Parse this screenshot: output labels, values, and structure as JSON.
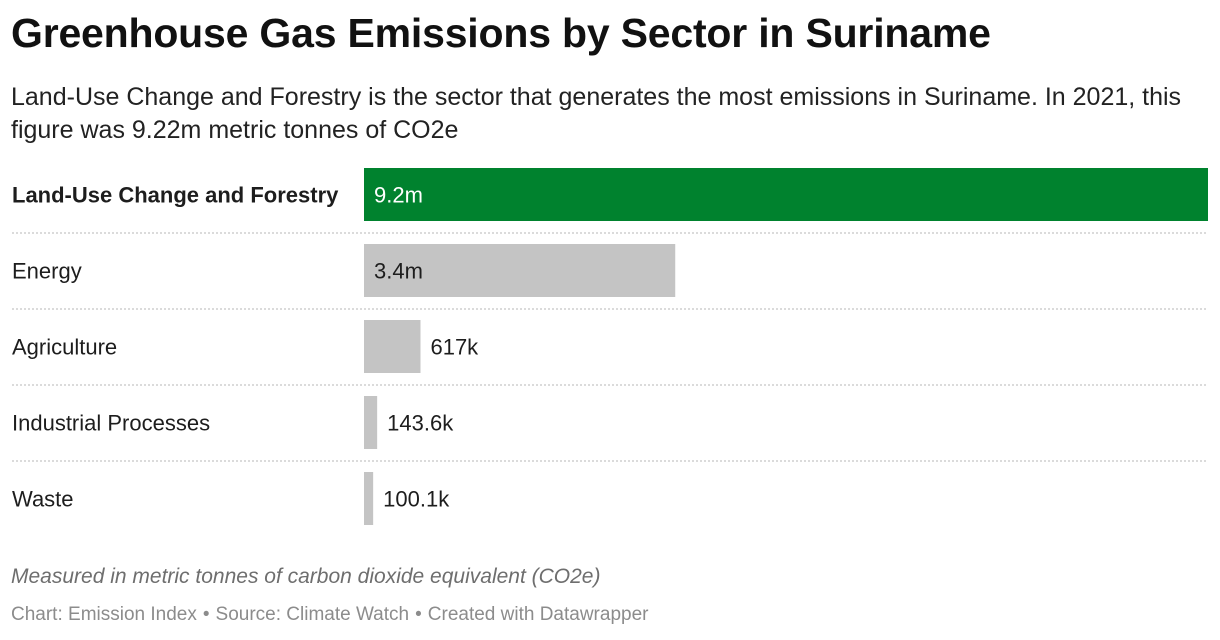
{
  "title": "Greenhouse Gas Emissions by Sector in Suriname",
  "subtitle": "Land-Use Change and Forestry is the sector that generates the most emissions in Suriname. In 2021, this figure was 9.22m metric tonnes of CO2e",
  "notes": "Measured in metric tonnes of carbon dioxide equivalent (CO2e)",
  "footer": {
    "chart_credit": "Chart: Emission Index",
    "source": "Source: Climate Watch",
    "created_with": "Created with Datawrapper",
    "separator": "•"
  },
  "colors": {
    "highlight": "#00822e",
    "bar": "#c4c4c4",
    "divider": "#cfcfcf"
  },
  "chart_data": {
    "type": "bar",
    "orientation": "horizontal",
    "categories": [
      "Land-Use Change and Forestry",
      "Energy",
      "Agriculture",
      "Industrial Processes",
      "Waste"
    ],
    "values": [
      9220000,
      3400000,
      617000,
      143600,
      100100
    ],
    "labels": [
      "9.2m",
      "3.4m",
      "617k",
      "143.6k",
      "100.1k"
    ],
    "highlight_index": 0,
    "xlim": [
      0,
      9220000
    ],
    "grid": false,
    "legend": "none"
  }
}
